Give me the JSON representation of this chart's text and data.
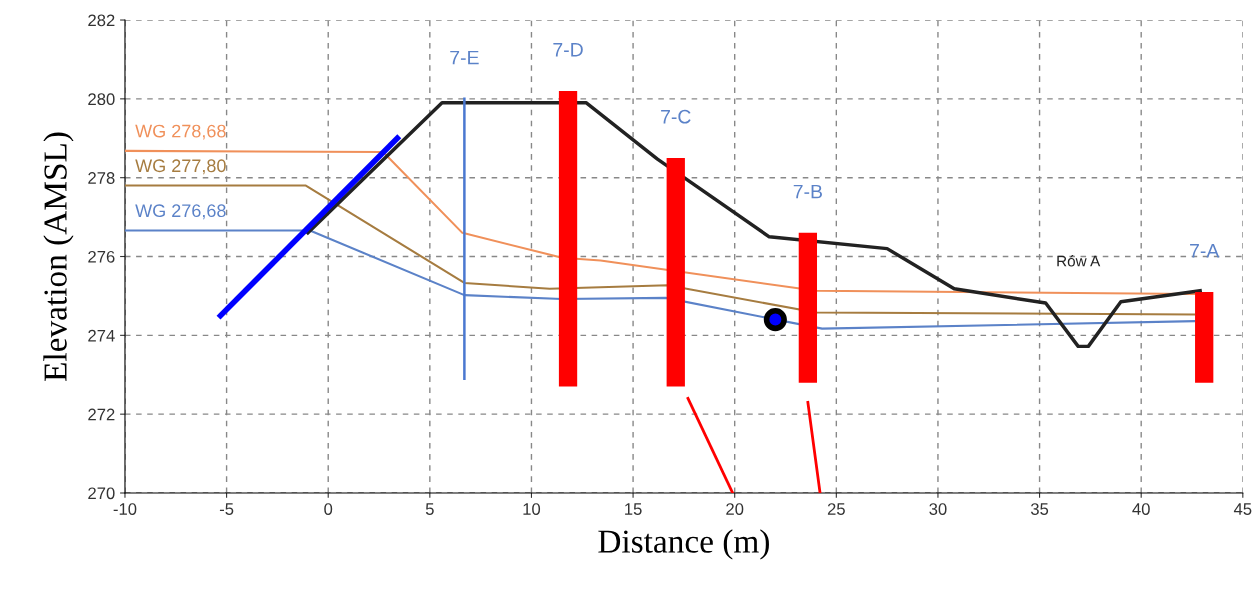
{
  "chart_data": {
    "type": "line",
    "xlabel": "Distance (m)",
    "ylabel": "Elevation (AMSL)",
    "xlim": [
      -10,
      45
    ],
    "xticks": [
      -10,
      -5,
      0,
      5,
      10,
      15,
      20,
      25,
      30,
      35,
      40,
      45
    ],
    "ylim": [
      270,
      282
    ],
    "yticks": [
      270,
      272,
      274,
      276,
      278,
      280,
      282
    ],
    "grid": true,
    "legend": false,
    "annotations": [
      {
        "text": "7-E",
        "x": 6.7,
        "y": 280.0
      },
      {
        "text": "7-D",
        "x": 11.8,
        "y": 280.2
      },
      {
        "text": "7-C",
        "x": 17.1,
        "y": 278.5
      },
      {
        "text": "7-B",
        "x": 23.6,
        "y": 276.6
      },
      {
        "text": "7-A",
        "x": 43.1,
        "y": 275.1
      }
    ],
    "series": [
      {
        "name": "WG 278,68",
        "color": "#f0905a",
        "x": [
          -10,
          2.7,
          6.6,
          11.5,
          13.4,
          24.0,
          42.6
        ],
        "values": [
          278.68,
          278.65,
          276.6,
          275.97,
          275.9,
          275.13,
          275.05
        ]
      },
      {
        "name": "WG 277,80",
        "color": "#a67c40",
        "x": [
          -10,
          -1.1,
          6.7,
          10.9,
          16.7,
          24.0,
          42.6
        ],
        "values": [
          277.8,
          277.8,
          275.33,
          275.18,
          275.27,
          274.58,
          274.53
        ]
      },
      {
        "name": "WG 276,68",
        "color": "#5b82c8",
        "x": [
          -10,
          -0.9,
          6.7,
          11.5,
          16.6,
          24.3,
          42.6
        ],
        "values": [
          276.66,
          276.66,
          275.02,
          274.92,
          274.95,
          274.17,
          274.36
        ]
      },
      {
        "name": "Rów A",
        "color": "#222222",
        "x": [
          -1.0,
          5.6,
          12.7,
          16.2,
          21.7,
          27.5,
          30.8,
          35.3,
          36.9,
          37.4,
          39.0,
          42.9
        ],
        "values": [
          276.6,
          279.9,
          279.9,
          278.47,
          276.5,
          276.2,
          275.18,
          274.82,
          273.72,
          273.72,
          274.85,
          275.13
        ]
      },
      {
        "color": "#4a78d0",
        "x": [
          6.7,
          6.7
        ],
        "values": [
          272.9,
          280.0
        ]
      },
      {
        "color": "#0000ff",
        "x": [
          -5.3,
          3.4
        ],
        "values": [
          274.5,
          279.0
        ]
      },
      {
        "color": "#ff0000",
        "x": [
          17.7,
          19.9
        ],
        "values": [
          272.4,
          270.0
        ]
      },
      {
        "color": "#ff0000",
        "x": [
          23.6,
          24.2
        ],
        "values": [
          272.3,
          270.0
        ]
      },
      {
        "type": "bar",
        "color": "#ff0000",
        "x": [
          11.8,
          17.1,
          23.6,
          43.1
        ],
        "base": [
          272.7,
          272.7,
          272.8,
          272.8
        ],
        "values": [
          7.5,
          5.8,
          3.8,
          2.3
        ]
      },
      {
        "type": "scatter",
        "color": "#0000ff",
        "marker": "circle",
        "x": [
          22.0
        ],
        "values": [
          274.4
        ]
      }
    ]
  }
}
